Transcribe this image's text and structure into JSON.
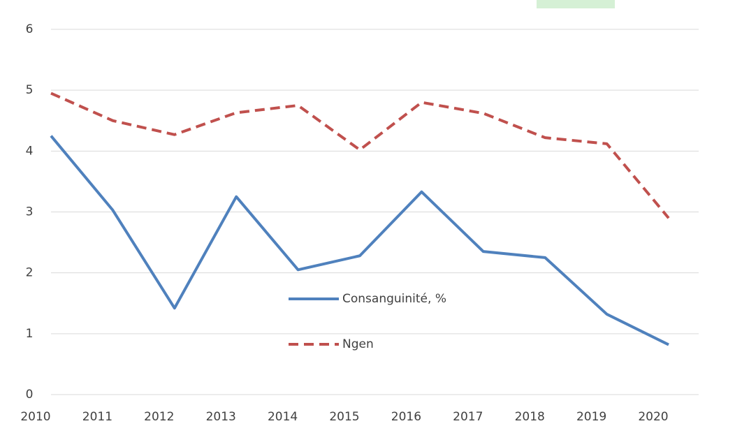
{
  "chart_data": {
    "type": "line",
    "categories": [
      "2010",
      "2011",
      "2012",
      "2013",
      "2014",
      "2015",
      "2016",
      "2017",
      "2018",
      "2019",
      "2020"
    ],
    "series": [
      {
        "name": "Consanguinité, %",
        "color": "#4f81bd",
        "dash": false,
        "values": [
          4.25,
          3.03,
          1.42,
          3.25,
          2.05,
          2.28,
          3.33,
          2.35,
          2.25,
          1.32,
          0.82
        ]
      },
      {
        "name": "Ngen",
        "color": "#c0504d",
        "dash": true,
        "values": [
          4.95,
          4.5,
          4.27,
          4.63,
          4.75,
          4.02,
          4.8,
          4.62,
          4.22,
          4.12,
          2.9
        ]
      }
    ],
    "ylim": [
      0,
      6
    ],
    "yticks": [
      0,
      1,
      2,
      3,
      4,
      5,
      6
    ],
    "grid": true
  }
}
